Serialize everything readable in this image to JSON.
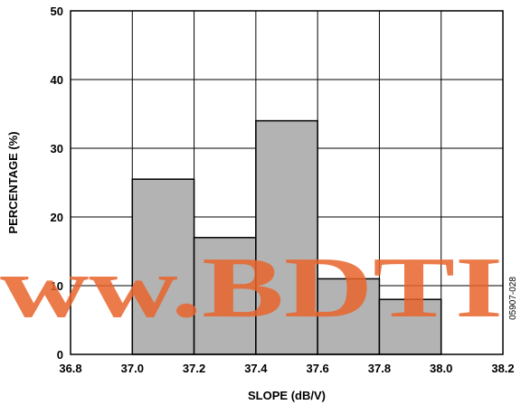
{
  "chart_data": {
    "type": "bar",
    "bins": [
      {
        "from": 37.0,
        "to": 37.2,
        "value": 25.5
      },
      {
        "from": 37.2,
        "to": 37.4,
        "value": 17
      },
      {
        "from": 37.4,
        "to": 37.6,
        "value": 34
      },
      {
        "from": 37.6,
        "to": 37.8,
        "value": 11
      },
      {
        "from": 37.8,
        "to": 38.0,
        "value": 8
      }
    ],
    "xlim": [
      36.8,
      38.2
    ],
    "ylim": [
      0,
      50
    ],
    "xticks": [
      "36.8",
      "37.0",
      "37.2",
      "37.4",
      "37.6",
      "37.8",
      "38.0",
      "38.2"
    ],
    "yticks": [
      "0",
      "10",
      "20",
      "30",
      "40",
      "50"
    ],
    "xlabel": "SLOPE (dB/V)",
    "ylabel": "PERCENTAGE (%)",
    "grid": true,
    "bar_color": "#b3b3b3"
  },
  "figure_code": "05907-028",
  "watermark": "ww.BDTI"
}
